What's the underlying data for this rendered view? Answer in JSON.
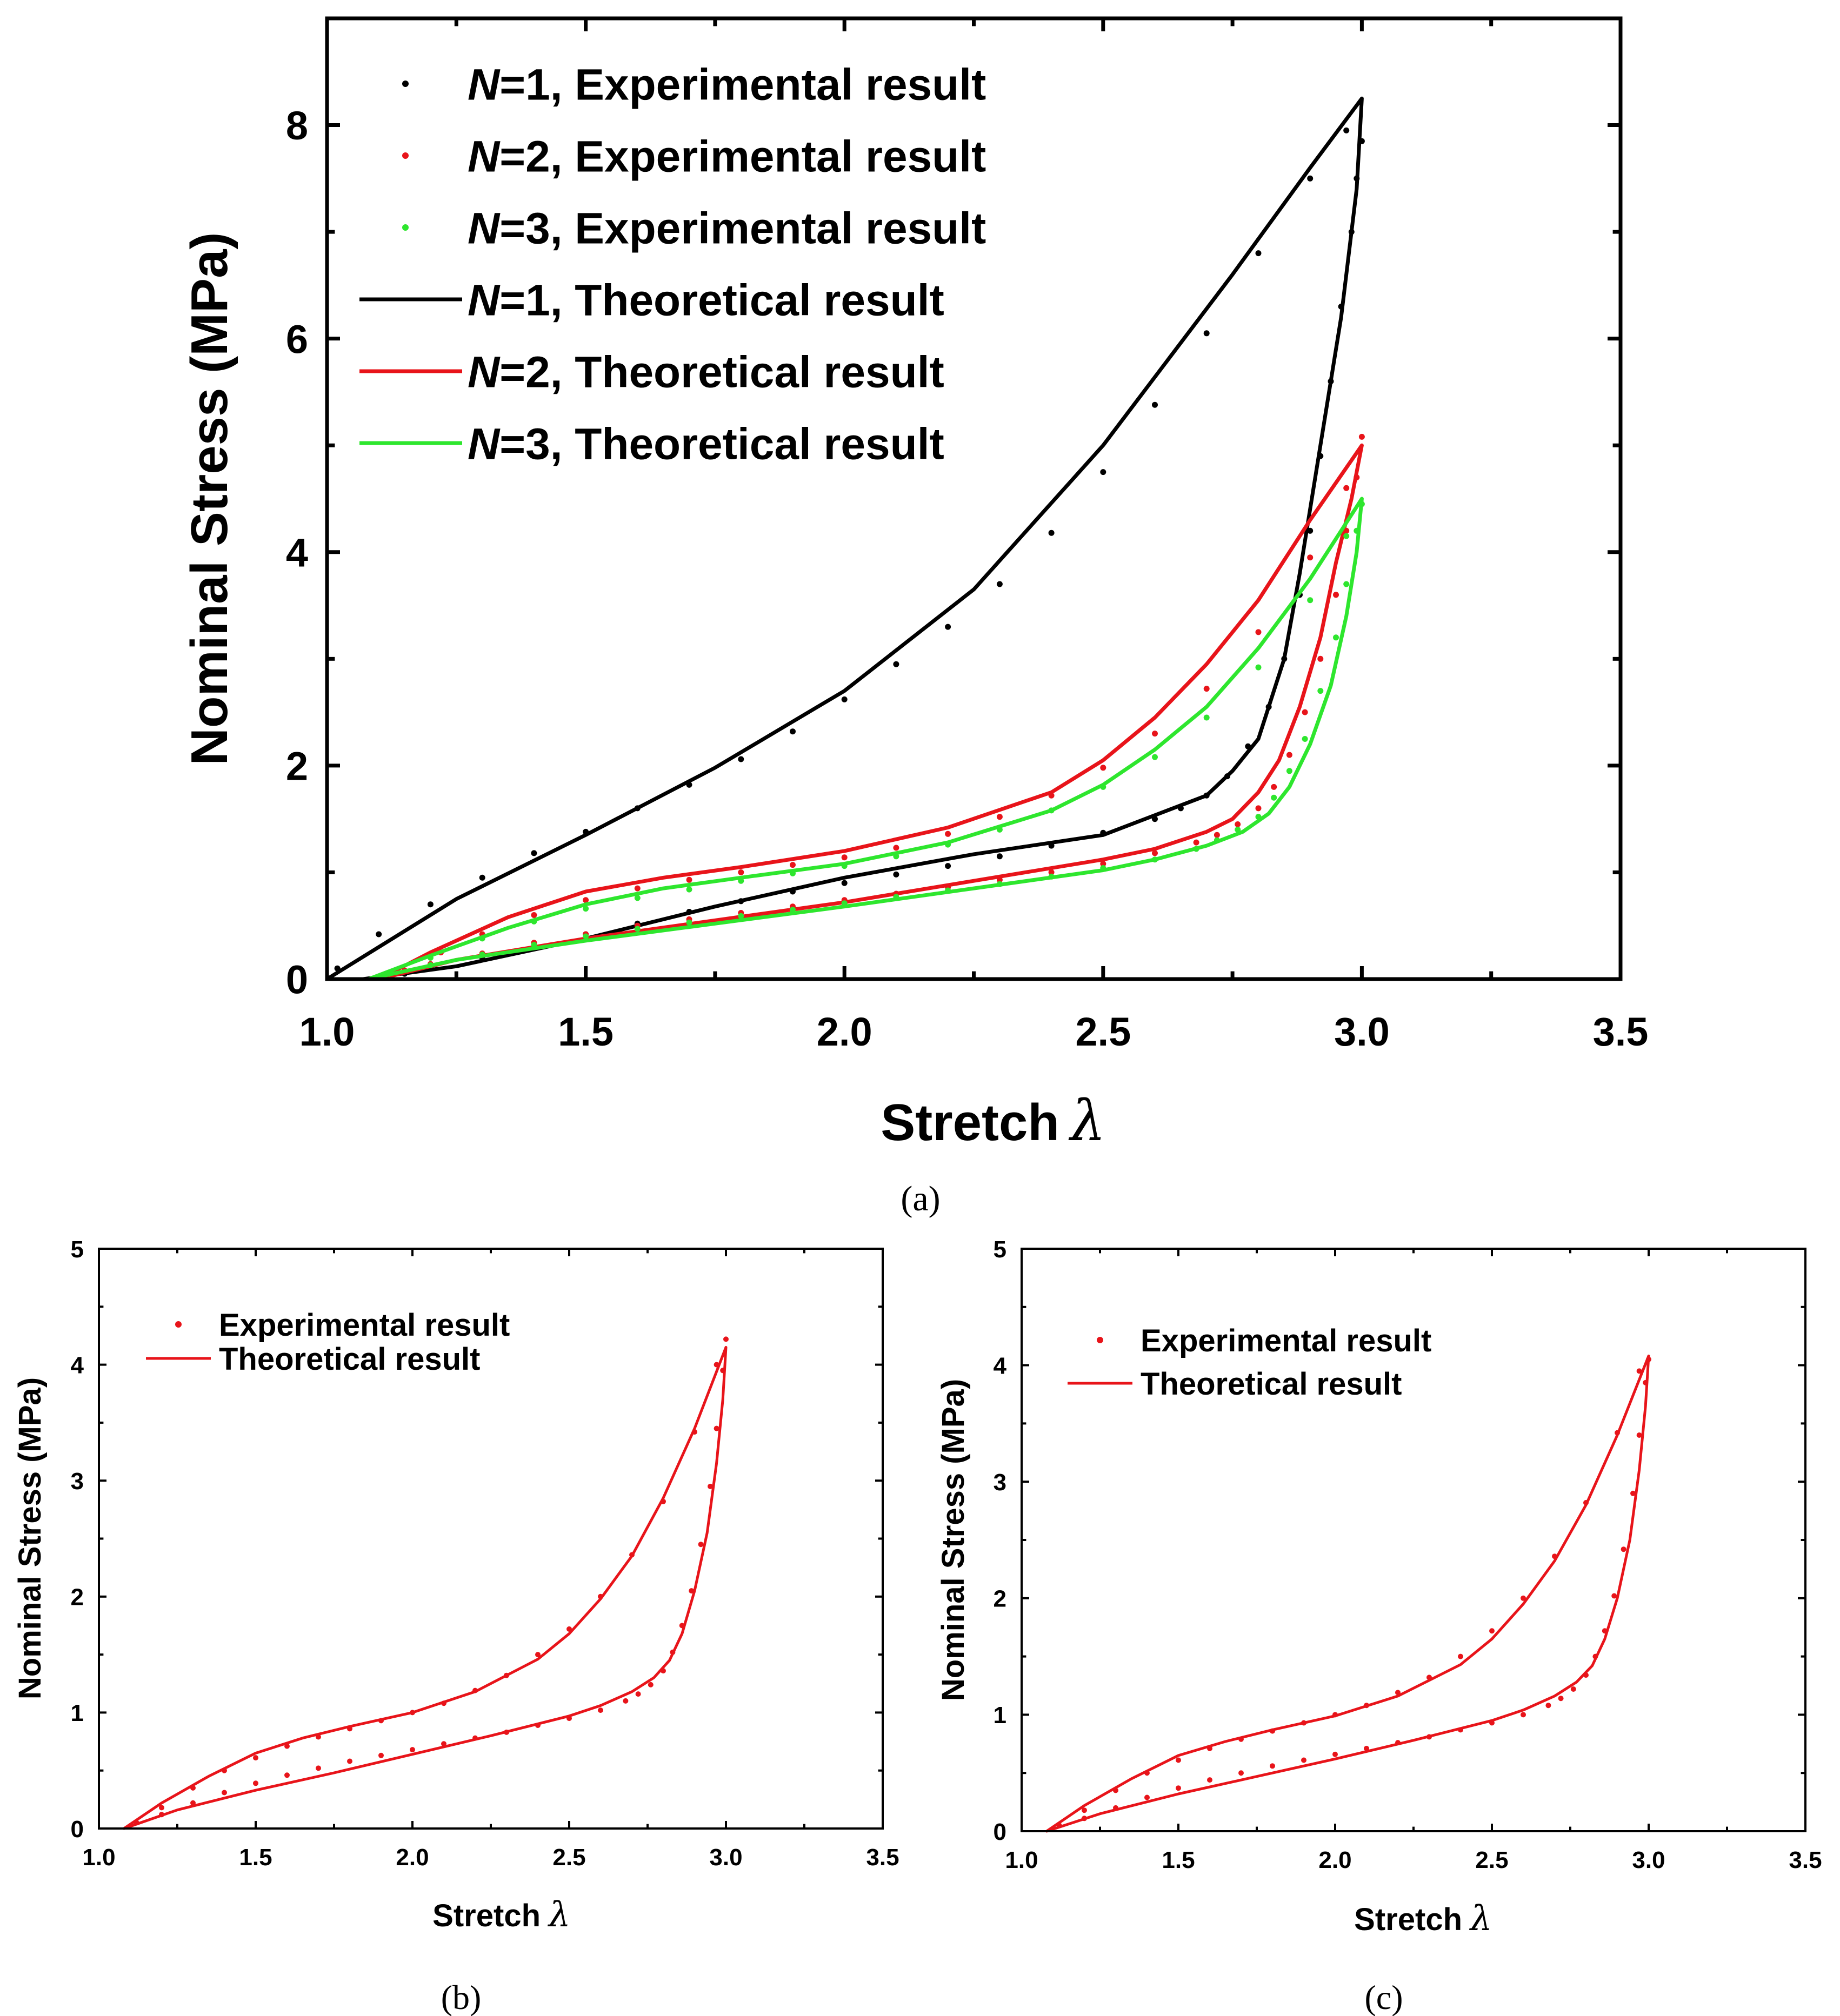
{
  "colors": {
    "N1": "#000000",
    "N2": "#e8141a",
    "N3": "#2ee62e",
    "axis": "#000000"
  },
  "chart_data": [
    {
      "panel_label": "(a)",
      "type": "line",
      "xlabel": "Stretch",
      "xlabel_symbol": "λ",
      "ylabel": "Nominal Stress (MPa)",
      "xlim": [
        1.0,
        3.5
      ],
      "ylim": [
        0,
        9
      ],
      "xticks": [
        "1.0",
        "1.5",
        "2.0",
        "2.5",
        "3.0",
        "3.5"
      ],
      "yticks": [
        "0",
        "2",
        "4",
        "6",
        "8"
      ],
      "grid": false,
      "legend_position": "top-left",
      "legend": [
        {
          "prefix": "N",
          "rest": "=1, Experimental result",
          "kind": "marker",
          "color": "#000000"
        },
        {
          "prefix": "N",
          "rest": "=2, Experimental result",
          "kind": "marker",
          "color": "#e8141a"
        },
        {
          "prefix": "N",
          "rest": "=3, Experimental result",
          "kind": "marker",
          "color": "#2ee62e"
        },
        {
          "prefix": "N",
          "rest": "=1, Theoretical result",
          "kind": "line",
          "color": "#000000"
        },
        {
          "prefix": "N",
          "rest": "=2, Theoretical result",
          "kind": "line",
          "color": "#e8141a"
        },
        {
          "prefix": "N",
          "rest": "=3, Theoretical result",
          "kind": "line",
          "color": "#2ee62e"
        }
      ],
      "series": [
        {
          "name": "N=1, Theoretical result",
          "style": "line",
          "color": "#000000",
          "x": [
            1.0,
            1.25,
            1.5,
            1.75,
            2.0,
            2.25,
            2.5,
            2.75,
            2.9,
            3.0,
            2.99,
            2.96,
            2.92,
            2.88,
            2.85,
            2.8,
            2.75,
            2.7,
            2.5,
            2.25,
            2.0,
            1.75,
            1.5,
            1.25,
            1.1,
            1.07
          ],
          "y": [
            0.0,
            0.75,
            1.35,
            1.98,
            2.7,
            3.65,
            5.0,
            6.6,
            7.6,
            8.25,
            7.4,
            6.2,
            5.0,
            3.8,
            3.0,
            2.25,
            1.95,
            1.72,
            1.35,
            1.17,
            0.95,
            0.68,
            0.38,
            0.12,
            0.02,
            0.0
          ]
        },
        {
          "name": "N=1, Experimental result",
          "style": "marker",
          "color": "#000000",
          "x": [
            1.02,
            1.1,
            1.2,
            1.3,
            1.4,
            1.5,
            1.6,
            1.7,
            1.8,
            1.9,
            2.0,
            2.1,
            2.2,
            2.3,
            2.4,
            2.5,
            2.6,
            2.7,
            2.8,
            2.9,
            2.97,
            3.0,
            2.99,
            2.98,
            2.96,
            2.94,
            2.92,
            2.9,
            2.88,
            2.85,
            2.82,
            2.78,
            2.74,
            2.7,
            2.65,
            2.6,
            2.5,
            2.4,
            2.3,
            2.2,
            2.1,
            2.0,
            1.9,
            1.8,
            1.7,
            1.6,
            1.5,
            1.4,
            1.3,
            1.2,
            1.15
          ],
          "y": [
            0.1,
            0.42,
            0.7,
            0.95,
            1.18,
            1.38,
            1.6,
            1.82,
            2.06,
            2.32,
            2.62,
            2.95,
            3.3,
            3.7,
            4.18,
            4.75,
            5.38,
            6.05,
            6.8,
            7.5,
            7.95,
            7.85,
            7.5,
            7.0,
            6.3,
            5.6,
            4.9,
            4.2,
            3.6,
            3.0,
            2.55,
            2.18,
            1.9,
            1.72,
            1.6,
            1.5,
            1.37,
            1.25,
            1.15,
            1.06,
            0.98,
            0.9,
            0.82,
            0.73,
            0.63,
            0.52,
            0.42,
            0.3,
            0.2,
            0.1,
            0.05
          ]
        },
        {
          "name": "N=2, Theoretical result",
          "style": "line",
          "color": "#e8141a",
          "x": [
            1.1,
            1.2,
            1.35,
            1.5,
            1.65,
            1.8,
            2.0,
            2.2,
            2.4,
            2.5,
            2.6,
            2.7,
            2.8,
            2.9,
            3.0,
            2.98,
            2.95,
            2.92,
            2.88,
            2.84,
            2.8,
            2.75,
            2.7,
            2.6,
            2.5,
            2.25,
            2.0,
            1.75,
            1.5,
            1.25,
            1.1
          ],
          "y": [
            0.0,
            0.25,
            0.58,
            0.82,
            0.95,
            1.05,
            1.2,
            1.42,
            1.75,
            2.05,
            2.45,
            2.95,
            3.55,
            4.3,
            5.0,
            4.5,
            3.9,
            3.2,
            2.55,
            2.05,
            1.75,
            1.5,
            1.38,
            1.22,
            1.12,
            0.92,
            0.72,
            0.55,
            0.38,
            0.18,
            0.0
          ]
        },
        {
          "name": "N=2, Experimental result",
          "style": "marker",
          "color": "#e8141a",
          "x": [
            1.15,
            1.22,
            1.3,
            1.4,
            1.5,
            1.6,
            1.7,
            1.8,
            1.9,
            2.0,
            2.1,
            2.2,
            2.3,
            2.4,
            2.5,
            2.6,
            2.7,
            2.8,
            2.9,
            2.97,
            3.0,
            2.99,
            2.97,
            2.95,
            2.92,
            2.89,
            2.86,
            2.83,
            2.8,
            2.76,
            2.72,
            2.68,
            2.6,
            2.5,
            2.4,
            2.3,
            2.2,
            2.1,
            2.0,
            1.9,
            1.8,
            1.7,
            1.6,
            1.5,
            1.4,
            1.3,
            1.2
          ],
          "y": [
            0.08,
            0.25,
            0.42,
            0.6,
            0.74,
            0.85,
            0.93,
            1.0,
            1.07,
            1.14,
            1.23,
            1.36,
            1.52,
            1.72,
            1.98,
            2.3,
            2.72,
            3.25,
            3.95,
            4.6,
            5.08,
            4.7,
            4.2,
            3.6,
            3.0,
            2.5,
            2.1,
            1.8,
            1.6,
            1.45,
            1.35,
            1.28,
            1.18,
            1.08,
            1.0,
            0.93,
            0.86,
            0.8,
            0.74,
            0.68,
            0.62,
            0.56,
            0.5,
            0.42,
            0.34,
            0.24,
            0.14
          ]
        },
        {
          "name": "N=3, Theoretical result",
          "style": "line",
          "color": "#2ee62e",
          "x": [
            1.08,
            1.2,
            1.35,
            1.5,
            1.65,
            1.8,
            2.0,
            2.2,
            2.4,
            2.5,
            2.6,
            2.7,
            2.8,
            2.9,
            3.0,
            2.99,
            2.97,
            2.94,
            2.9,
            2.86,
            2.82,
            2.77,
            2.7,
            2.6,
            2.5,
            2.25,
            2.0,
            1.75,
            1.5,
            1.25,
            1.08
          ],
          "y": [
            0.0,
            0.22,
            0.48,
            0.7,
            0.85,
            0.95,
            1.08,
            1.28,
            1.58,
            1.82,
            2.15,
            2.55,
            3.1,
            3.75,
            4.5,
            4.0,
            3.4,
            2.75,
            2.2,
            1.8,
            1.55,
            1.38,
            1.25,
            1.12,
            1.02,
            0.85,
            0.68,
            0.52,
            0.36,
            0.18,
            0.0
          ]
        },
        {
          "name": "N=3, Experimental result",
          "style": "marker",
          "color": "#2ee62e",
          "x": [
            1.12,
            1.2,
            1.3,
            1.4,
            1.5,
            1.6,
            1.7,
            1.8,
            1.9,
            2.0,
            2.1,
            2.2,
            2.3,
            2.4,
            2.5,
            2.6,
            2.7,
            2.8,
            2.9,
            2.97,
            3.0,
            2.99,
            2.97,
            2.95,
            2.92,
            2.89,
            2.86,
            2.83,
            2.8,
            2.76,
            2.72,
            2.68,
            2.6,
            2.5,
            2.4,
            2.3,
            2.2,
            2.1,
            2.0,
            1.9,
            1.8,
            1.7,
            1.6,
            1.5,
            1.4,
            1.3,
            1.2
          ],
          "y": [
            0.05,
            0.2,
            0.38,
            0.54,
            0.66,
            0.76,
            0.84,
            0.92,
            0.99,
            1.06,
            1.15,
            1.26,
            1.4,
            1.58,
            1.8,
            2.08,
            2.45,
            2.92,
            3.55,
            4.15,
            4.45,
            4.2,
            3.7,
            3.2,
            2.7,
            2.25,
            1.95,
            1.7,
            1.52,
            1.4,
            1.3,
            1.22,
            1.12,
            1.04,
            0.96,
            0.89,
            0.83,
            0.77,
            0.71,
            0.65,
            0.59,
            0.53,
            0.47,
            0.4,
            0.32,
            0.23,
            0.13
          ]
        }
      ]
    },
    {
      "panel_label": "(b)",
      "type": "line",
      "xlabel": "Stretch",
      "xlabel_symbol": "λ",
      "ylabel": "Nominal Stress (MPa)",
      "xlim": [
        1.0,
        3.5
      ],
      "ylim": [
        0,
        5
      ],
      "xticks": [
        "1.0",
        "1.5",
        "2.0",
        "2.5",
        "3.0",
        "3.5"
      ],
      "yticks": [
        "0",
        "1",
        "2",
        "3",
        "4",
        "5"
      ],
      "grid": false,
      "legend_position": "top-left",
      "legend": [
        {
          "label": "Experimental result",
          "kind": "marker",
          "color": "#e8141a"
        },
        {
          "label": "Theoretical result",
          "kind": "line",
          "color": "#e8141a"
        }
      ],
      "series": [
        {
          "name": "Theoretical result",
          "style": "line",
          "color": "#e8141a",
          "x": [
            1.08,
            1.2,
            1.35,
            1.5,
            1.65,
            1.8,
            2.0,
            2.2,
            2.4,
            2.5,
            2.6,
            2.7,
            2.8,
            2.9,
            3.0,
            2.99,
            2.97,
            2.94,
            2.9,
            2.86,
            2.82,
            2.77,
            2.7,
            2.6,
            2.5,
            2.25,
            2.0,
            1.75,
            1.5,
            1.25,
            1.08
          ],
          "y": [
            0.0,
            0.22,
            0.45,
            0.65,
            0.78,
            0.88,
            1.0,
            1.18,
            1.46,
            1.68,
            1.98,
            2.35,
            2.85,
            3.45,
            4.15,
            3.7,
            3.15,
            2.55,
            2.05,
            1.68,
            1.45,
            1.3,
            1.18,
            1.06,
            0.97,
            0.8,
            0.64,
            0.48,
            0.33,
            0.16,
            0.0
          ]
        },
        {
          "name": "Experimental result",
          "style": "marker",
          "color": "#e8141a",
          "x": [
            1.12,
            1.2,
            1.3,
            1.4,
            1.5,
            1.6,
            1.7,
            1.8,
            1.9,
            2.0,
            2.1,
            2.2,
            2.3,
            2.4,
            2.5,
            2.6,
            2.7,
            2.8,
            2.9,
            2.97,
            3.0,
            2.99,
            2.97,
            2.95,
            2.92,
            2.89,
            2.86,
            2.83,
            2.8,
            2.76,
            2.72,
            2.68,
            2.6,
            2.5,
            2.4,
            2.3,
            2.2,
            2.1,
            2.0,
            1.9,
            1.8,
            1.7,
            1.6,
            1.5,
            1.4,
            1.3,
            1.2
          ],
          "y": [
            0.05,
            0.18,
            0.35,
            0.5,
            0.61,
            0.71,
            0.79,
            0.86,
            0.93,
            1.0,
            1.08,
            1.19,
            1.32,
            1.5,
            1.72,
            2.0,
            2.36,
            2.82,
            3.42,
            4.0,
            4.22,
            3.95,
            3.45,
            2.95,
            2.45,
            2.05,
            1.75,
            1.52,
            1.36,
            1.24,
            1.16,
            1.1,
            1.02,
            0.95,
            0.89,
            0.83,
            0.78,
            0.73,
            0.68,
            0.63,
            0.58,
            0.52,
            0.46,
            0.39,
            0.31,
            0.22,
            0.12
          ]
        }
      ]
    },
    {
      "panel_label": "(c)",
      "type": "line",
      "xlabel": "Stretch",
      "xlabel_symbol": "λ",
      "ylabel": "Nominal Stress (MPa)",
      "xlim": [
        1.0,
        3.5
      ],
      "ylim": [
        0,
        5
      ],
      "xticks": [
        "1.0",
        "1.5",
        "2.0",
        "2.5",
        "3.0",
        "3.5"
      ],
      "yticks": [
        "0",
        "1",
        "2",
        "3",
        "4",
        "5"
      ],
      "grid": false,
      "legend_position": "top-left",
      "legend": [
        {
          "label": "Experimental result",
          "kind": "marker",
          "color": "#e8141a"
        },
        {
          "label": "Theoretical result",
          "kind": "line",
          "color": "#e8141a"
        }
      ],
      "series": [
        {
          "name": "Theoretical result",
          "style": "line",
          "color": "#e8141a",
          "x": [
            1.08,
            1.2,
            1.35,
            1.5,
            1.65,
            1.8,
            2.0,
            2.2,
            2.4,
            2.5,
            2.6,
            2.7,
            2.8,
            2.9,
            3.0,
            2.99,
            2.97,
            2.94,
            2.9,
            2.86,
            2.82,
            2.77,
            2.7,
            2.6,
            2.5,
            2.25,
            2.0,
            1.75,
            1.5,
            1.25,
            1.08
          ],
          "y": [
            0.0,
            0.22,
            0.45,
            0.65,
            0.77,
            0.87,
            0.99,
            1.16,
            1.43,
            1.65,
            1.95,
            2.32,
            2.8,
            3.4,
            4.08,
            3.65,
            3.1,
            2.5,
            2.0,
            1.65,
            1.42,
            1.28,
            1.16,
            1.04,
            0.95,
            0.78,
            0.62,
            0.47,
            0.32,
            0.15,
            0.0
          ]
        },
        {
          "name": "Experimental result",
          "style": "marker",
          "color": "#e8141a",
          "x": [
            1.12,
            1.2,
            1.3,
            1.4,
            1.5,
            1.6,
            1.7,
            1.8,
            1.9,
            2.0,
            2.1,
            2.2,
            2.3,
            2.4,
            2.5,
            2.6,
            2.7,
            2.8,
            2.9,
            2.97,
            3.0,
            2.99,
            2.97,
            2.95,
            2.92,
            2.89,
            2.86,
            2.83,
            2.8,
            2.76,
            2.72,
            2.68,
            2.6,
            2.5,
            2.4,
            2.3,
            2.2,
            2.1,
            2.0,
            1.9,
            1.8,
            1.7,
            1.6,
            1.5,
            1.4,
            1.3,
            1.2
          ],
          "y": [
            0.05,
            0.18,
            0.35,
            0.5,
            0.61,
            0.71,
            0.79,
            0.86,
            0.93,
            1.0,
            1.08,
            1.19,
            1.32,
            1.5,
            1.72,
            2.0,
            2.36,
            2.82,
            3.42,
            3.95,
            4.05,
            3.85,
            3.4,
            2.9,
            2.42,
            2.02,
            1.72,
            1.5,
            1.34,
            1.22,
            1.14,
            1.08,
            1.0,
            0.93,
            0.87,
            0.81,
            0.76,
            0.71,
            0.66,
            0.61,
            0.56,
            0.5,
            0.44,
            0.37,
            0.29,
            0.2,
            0.11
          ]
        }
      ]
    }
  ]
}
